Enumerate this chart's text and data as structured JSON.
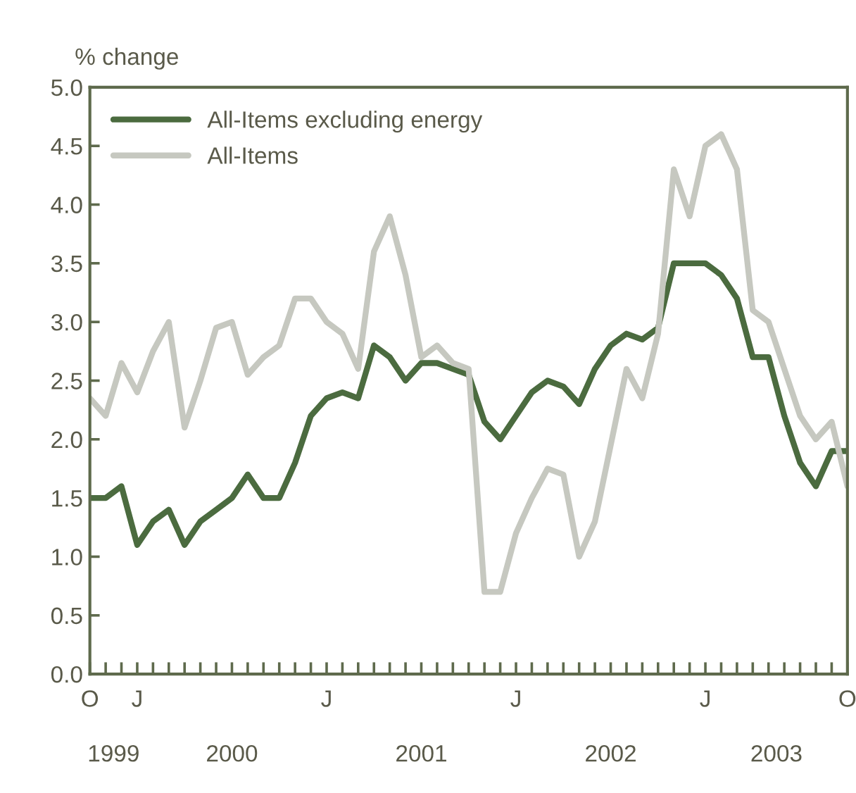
{
  "chart_data": {
    "type": "line",
    "ylabel": "% change",
    "categories": [
      "O",
      null,
      null,
      "J",
      null,
      null,
      null,
      null,
      null,
      null,
      null,
      null,
      null,
      null,
      null,
      "J",
      null,
      null,
      null,
      null,
      null,
      null,
      null,
      null,
      null,
      null,
      null,
      "J",
      null,
      null,
      null,
      null,
      null,
      null,
      null,
      null,
      null,
      null,
      null,
      "J",
      null,
      null,
      null,
      null,
      null,
      null,
      null,
      null,
      "O"
    ],
    "series": [
      {
        "name": "All-Items excluding energy",
        "color": "#4b6b3f",
        "values": [
          1.5,
          1.5,
          1.6,
          1.1,
          1.3,
          1.4,
          1.1,
          1.3,
          1.4,
          1.5,
          1.7,
          1.5,
          1.5,
          1.8,
          2.2,
          2.35,
          2.4,
          2.35,
          2.8,
          2.7,
          2.5,
          2.65,
          2.65,
          2.6,
          2.55,
          2.15,
          2.0,
          2.2,
          2.4,
          2.5,
          2.45,
          2.3,
          2.6,
          2.8,
          2.9,
          2.85,
          2.95,
          3.5,
          3.5,
          3.5,
          3.4,
          3.2,
          2.7,
          2.7,
          2.2,
          1.8,
          1.6,
          1.9,
          1.9
        ]
      },
      {
        "name": "All-Items",
        "color": "#c6c8c0",
        "values": [
          2.35,
          2.2,
          2.65,
          2.4,
          2.75,
          3.0,
          2.1,
          2.5,
          2.95,
          3.0,
          2.55,
          2.7,
          2.8,
          3.2,
          3.2,
          3.0,
          2.9,
          2.6,
          3.6,
          3.9,
          3.4,
          2.7,
          2.8,
          2.65,
          2.6,
          0.7,
          0.7,
          1.2,
          1.5,
          1.75,
          1.7,
          1.0,
          1.3,
          1.95,
          2.6,
          2.35,
          2.9,
          4.3,
          3.9,
          4.5,
          4.6,
          4.3,
          3.1,
          3.0,
          2.6,
          2.2,
          2.0,
          2.15,
          1.6
        ]
      }
    ],
    "annotations": [
      "1999",
      "2000",
      "2001",
      "2002",
      "2003"
    ],
    "ylim": [
      0,
      5
    ],
    "yticks": [
      {
        "value": 0,
        "label": "0.0"
      },
      {
        "value": 0.5,
        "label": "0.5"
      },
      {
        "value": 1,
        "label": "1.0"
      },
      {
        "value": 1.5,
        "label": "1.5"
      },
      {
        "value": 2,
        "label": "2.0"
      },
      {
        "value": 2.5,
        "label": "2.5"
      },
      {
        "value": 3,
        "label": "3.0"
      },
      {
        "value": 3.5,
        "label": "3.5"
      },
      {
        "value": 4,
        "label": "4.0"
      },
      {
        "value": 4.5,
        "label": "4.5"
      },
      {
        "value": 5,
        "label": "5.0"
      }
    ],
    "legend": "top left",
    "grid": false,
    "marker": "none",
    "line_style": "solid"
  }
}
